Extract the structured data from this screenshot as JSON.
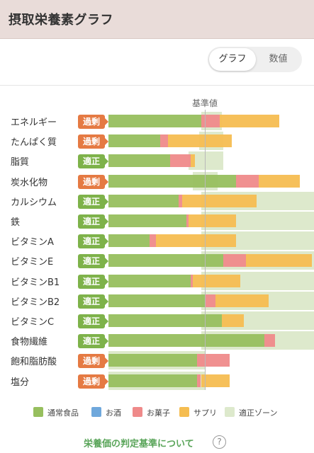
{
  "header": {
    "title": "摂取栄養素グラフ"
  },
  "toggle": {
    "graph_label": "グラフ",
    "values_label": "数値",
    "selected": "グラフ"
  },
  "baseline_label": "基準値",
  "colors": {
    "normal_food": "#97bf5e",
    "alcohol": "#6fa8dc",
    "snacks": "#ef8a8a",
    "supplement": "#f5bd51",
    "proper_zone": "#dde9cc",
    "badge_excess": "#e57a43",
    "badge_proper": "#7eb24a",
    "link": "#5aa55a"
  },
  "nutrients": [
    {
      "name": "エネルギー",
      "status": "過剰",
      "status_type": "excess",
      "normal": 45,
      "alcohol": 0,
      "snacks": 9,
      "supplement": 29,
      "zone_from": 45,
      "zone_to": 55
    },
    {
      "name": "たんぱく質",
      "status": "過剰",
      "status_type": "excess",
      "normal": 25,
      "alcohol": 0,
      "snacks": 4,
      "supplement": 31,
      "zone_from": 44,
      "zone_to": 56
    },
    {
      "name": "脂質",
      "status": "適正",
      "status_type": "proper",
      "normal": 30,
      "alcohol": 0,
      "snacks": 10,
      "supplement": 2,
      "zone_from": 39,
      "zone_to": 56
    },
    {
      "name": "炭水化物",
      "status": "過剰",
      "status_type": "excess",
      "normal": 62,
      "alcohol": 0,
      "snacks": 11,
      "supplement": 20,
      "zone_from": 41,
      "zone_to": 53
    },
    {
      "name": "カルシウム",
      "status": "適正",
      "status_type": "proper",
      "normal": 34,
      "alcohol": 0,
      "snacks": 2,
      "supplement": 36,
      "zone_from": 45,
      "zone_to": 100
    },
    {
      "name": "鉄",
      "status": "適正",
      "status_type": "proper",
      "normal": 38,
      "alcohol": 0,
      "snacks": 1,
      "supplement": 23,
      "zone_from": 45,
      "zone_to": 100
    },
    {
      "name": "ビタミンA",
      "status": "適正",
      "status_type": "proper",
      "normal": 20,
      "alcohol": 0,
      "snacks": 3,
      "supplement": 39,
      "zone_from": 45,
      "zone_to": 100
    },
    {
      "name": "ビタミンE",
      "status": "適正",
      "status_type": "proper",
      "normal": 56,
      "alcohol": 0,
      "snacks": 11,
      "supplement": 32,
      "zone_from": 45,
      "zone_to": 100
    },
    {
      "name": "ビタミンB1",
      "status": "適正",
      "status_type": "proper",
      "normal": 40,
      "alcohol": 0,
      "snacks": 1,
      "supplement": 23,
      "zone_from": 45,
      "zone_to": 100
    },
    {
      "name": "ビタミンB2",
      "status": "適正",
      "status_type": "proper",
      "normal": 47,
      "alcohol": 0,
      "snacks": 5,
      "supplement": 26,
      "zone_from": 45,
      "zone_to": 100
    },
    {
      "name": "ビタミンC",
      "status": "適正",
      "status_type": "proper",
      "normal": 55,
      "alcohol": 0,
      "snacks": 0,
      "supplement": 11,
      "zone_from": 45,
      "zone_to": 100
    },
    {
      "name": "食物繊維",
      "status": "適正",
      "status_type": "proper",
      "normal": 76,
      "alcohol": 0,
      "snacks": 5,
      "supplement": 0,
      "zone_from": 45,
      "zone_to": 100
    },
    {
      "name": "飽和脂肪酸",
      "status": "過剰",
      "status_type": "excess",
      "normal": 43,
      "alcohol": 0,
      "snacks": 16,
      "supplement": 0,
      "zone_from": 0,
      "zone_to": 47
    },
    {
      "name": "塩分",
      "status": "過剰",
      "status_type": "excess",
      "normal": 43,
      "alcohol": 0,
      "snacks": 2,
      "supplement": 14,
      "zone_from": 0,
      "zone_to": 47
    }
  ],
  "legend": [
    {
      "label": "通常食品",
      "color_key": "normal_food"
    },
    {
      "label": "お酒",
      "color_key": "alcohol"
    },
    {
      "label": "お菓子",
      "color_key": "snacks"
    },
    {
      "label": "サプリ",
      "color_key": "supplement"
    },
    {
      "label": "適正ゾーン",
      "color_key": "proper_zone"
    }
  ],
  "help_link": {
    "label": "栄養価の判定基準について",
    "icon": "question-circle-icon",
    "icon_glyph": "?"
  }
}
